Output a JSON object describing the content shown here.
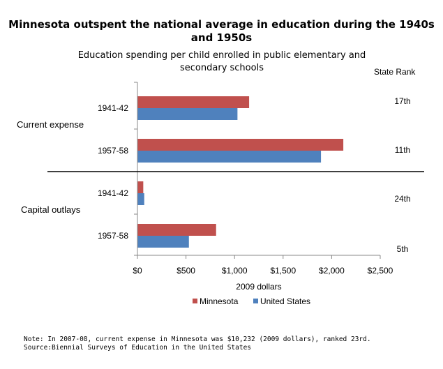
{
  "chart_data": {
    "type": "bar",
    "orientation": "horizontal",
    "title": "Minnesota outspent the national average in education during the 1940s and 1950s",
    "subtitle": "Education spending per child enrolled in public elementary and secondary schools",
    "xlabel": "2009 dollars",
    "xlim": [
      0,
      2500
    ],
    "xticks": [
      {
        "value": 0,
        "label": "$0"
      },
      {
        "value": 500,
        "label": "$500"
      },
      {
        "value": 1000,
        "label": "$1,000"
      },
      {
        "value": 1500,
        "label": "$1,500"
      },
      {
        "value": 2000,
        "label": "$2,000"
      },
      {
        "value": 2500,
        "label": "$2,500"
      }
    ],
    "groups": [
      {
        "label": "Current expense",
        "categories": [
          "1941-42",
          "1957-58"
        ]
      },
      {
        "label": "Capital outlays",
        "categories": [
          "1941-42",
          "1957-58"
        ]
      }
    ],
    "categories": [
      "1941-42",
      "1957-58",
      "1941-42",
      "1957-58"
    ],
    "series": [
      {
        "name": "Minnesota",
        "color": "#c0504d",
        "values": [
          1150,
          2120,
          60,
          810
        ]
      },
      {
        "name": "United States",
        "color": "#4f81bd",
        "values": [
          1030,
          1890,
          70,
          530
        ]
      }
    ],
    "rank_header": "State Rank",
    "ranks": [
      "17th",
      "11th",
      "24th",
      "5th"
    ],
    "legend_position": "bottom",
    "grid": false
  },
  "note": "Note: In 2007-08, current expense in Minnesota was $10,232 (2009 dollars), ranked 23rd.",
  "source": "Source:Biennial Surveys of Education in the United States"
}
